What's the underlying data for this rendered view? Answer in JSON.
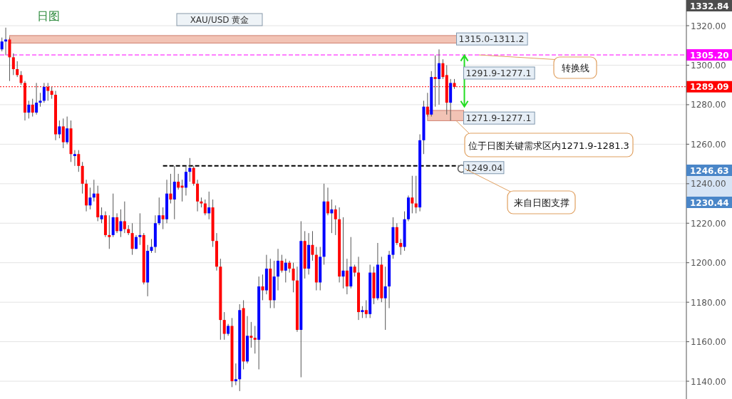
{
  "chart_data": {
    "type": "candlestick",
    "title": "XAU/USD 黄金",
    "subtitle": "日图",
    "categories": [
      null,
      null,
      null,
      null,
      null,
      null,
      null,
      null,
      null,
      null,
      null,
      null,
      null,
      null,
      null,
      null,
      null,
      null,
      null,
      null,
      null,
      null,
      null,
      null,
      null,
      null,
      null,
      null,
      null,
      null,
      null,
      null,
      null,
      null,
      null,
      null,
      null,
      null,
      null,
      null,
      null,
      null,
      null,
      null,
      null,
      null,
      null,
      null,
      null,
      null,
      null,
      null,
      null,
      null,
      null,
      null,
      null,
      null,
      null,
      null,
      null,
      null,
      null,
      null,
      null,
      null,
      null,
      null,
      null,
      null,
      null,
      null,
      null,
      null,
      null,
      null,
      null,
      null,
      null,
      null,
      null,
      null,
      null,
      null,
      null,
      null,
      null,
      null,
      null,
      null,
      null,
      null,
      null,
      null,
      null,
      null,
      null,
      null,
      null,
      null,
      null,
      null,
      null,
      null,
      null,
      null,
      null,
      null,
      null,
      null,
      null,
      null,
      null,
      null,
      null,
      null,
      null,
      null,
      null,
      null,
      null,
      null,
      null,
      null,
      null,
      null,
      null,
      null,
      null,
      null,
      null,
      null,
      null,
      null,
      null,
      null,
      null,
      null,
      null,
      null,
      null,
      null,
      null,
      null,
      null,
      null,
      null,
      null,
      null,
      null,
      null,
      null,
      null,
      null,
      null,
      null,
      null,
      null,
      null,
      null,
      null,
      null,
      null,
      null,
      null,
      null,
      null,
      null,
      null,
      null,
      null,
      null,
      null,
      null,
      null,
      null,
      null,
      null,
      null
    ],
    "ohlc": [
      [
        1308,
        1314,
        1307,
        1312
      ],
      [
        1312,
        1319,
        1305,
        1313
      ],
      [
        1313,
        1314,
        1292,
        1304
      ],
      [
        1304,
        1306,
        1295,
        1298
      ],
      [
        1298,
        1302,
        1294,
        1295
      ],
      [
        1295,
        1297,
        1290,
        1291
      ],
      [
        1291,
        1292,
        1272,
        1276
      ],
      [
        1276,
        1282,
        1273,
        1280
      ],
      [
        1280,
        1283,
        1274,
        1276
      ],
      [
        1276,
        1291,
        1275,
        1281
      ],
      [
        1281,
        1286,
        1279,
        1282
      ],
      [
        1282,
        1291,
        1281,
        1289
      ],
      [
        1289,
        1291,
        1282,
        1287
      ],
      [
        1287,
        1289,
        1283,
        1285
      ],
      [
        1285,
        1287,
        1262,
        1265
      ],
      [
        1265,
        1272,
        1263,
        1269
      ],
      [
        1269,
        1273,
        1258,
        1261
      ],
      [
        1261,
        1274,
        1260,
        1268
      ],
      [
        1268,
        1272,
        1251,
        1255
      ],
      [
        1254,
        1257,
        1249,
        1255
      ],
      [
        1255,
        1257,
        1246,
        1249
      ],
      [
        1249,
        1251,
        1235,
        1240
      ],
      [
        1240,
        1242,
        1226,
        1229
      ],
      [
        1229,
        1238,
        1227,
        1233
      ],
      [
        1233,
        1242,
        1231,
        1235
      ],
      [
        1235,
        1239,
        1221,
        1223
      ],
      [
        1222,
        1228,
        1220,
        1224
      ],
      [
        1224,
        1226,
        1213,
        1214
      ],
      [
        1214,
        1224,
        1207,
        1213
      ],
      [
        1214,
        1235,
        1213,
        1223
      ],
      [
        1223,
        1225,
        1215,
        1216
      ],
      [
        1216,
        1227,
        1213,
        1221
      ],
      [
        1221,
        1231,
        1215,
        1217
      ],
      [
        1217,
        1219,
        1214,
        1215
      ],
      [
        1215,
        1220,
        1204,
        1207
      ],
      [
        1207,
        1214,
        1207,
        1213
      ],
      [
        1213,
        1225,
        1209,
        1214
      ],
      [
        1214,
        1215,
        1189,
        1190
      ],
      [
        1190,
        1209,
        1183,
        1206
      ],
      [
        1206,
        1212,
        1205,
        1208
      ],
      [
        1208,
        1224,
        1205,
        1220
      ],
      [
        1220,
        1233,
        1219,
        1224
      ],
      [
        1224,
        1228,
        1217,
        1222
      ],
      [
        1222,
        1242,
        1220,
        1235
      ],
      [
        1235,
        1245,
        1230,
        1232
      ],
      [
        1232,
        1249,
        1222,
        1241
      ],
      [
        1241,
        1245,
        1237,
        1238
      ],
      [
        1239,
        1242,
        1231,
        1238
      ],
      [
        1238,
        1249,
        1234,
        1246
      ],
      [
        1246,
        1253,
        1241,
        1248
      ],
      [
        1248,
        1249,
        1239,
        1240
      ],
      [
        1240,
        1242,
        1226,
        1231
      ],
      [
        1231,
        1233,
        1228,
        1230
      ],
      [
        1230,
        1232,
        1224,
        1225
      ],
      [
        1225,
        1236,
        1222,
        1228
      ],
      [
        1228,
        1232,
        1208,
        1211
      ],
      [
        1211,
        1215,
        1196,
        1198
      ],
      [
        1198,
        1202,
        1161,
        1171
      ],
      [
        1171,
        1175,
        1161,
        1164
      ],
      [
        1164,
        1169,
        1163,
        1168
      ],
      [
        1168,
        1172,
        1137,
        1140
      ],
      [
        1140,
        1149,
        1138,
        1141
      ],
      [
        1141,
        1179,
        1135,
        1176
      ],
      [
        1177,
        1181,
        1146,
        1150
      ],
      [
        1150,
        1173,
        1149,
        1163
      ],
      [
        1163,
        1170,
        1157,
        1162
      ],
      [
        1162,
        1168,
        1154,
        1161
      ],
      [
        1161,
        1193,
        1146,
        1188
      ],
      [
        1188,
        1194,
        1181,
        1186
      ],
      [
        1186,
        1204,
        1184,
        1197
      ],
      [
        1197,
        1202,
        1177,
        1181
      ],
      [
        1181,
        1201,
        1177,
        1193
      ],
      [
        1193,
        1207,
        1186,
        1201
      ],
      [
        1201,
        1204,
        1195,
        1196
      ],
      [
        1196,
        1202,
        1190,
        1200
      ],
      [
        1200,
        1201,
        1195,
        1197
      ],
      [
        1197,
        1200,
        1185,
        1191
      ],
      [
        1191,
        1198,
        1165,
        1166
      ],
      [
        1166,
        1221,
        1142,
        1211
      ],
      [
        1211,
        1216,
        1192,
        1197
      ],
      [
        1197,
        1215,
        1194,
        1209
      ],
      [
        1209,
        1216,
        1201,
        1204
      ],
      [
        1204,
        1208,
        1186,
        1190
      ],
      [
        1190,
        1208,
        1186,
        1203
      ],
      [
        1203,
        1240,
        1199,
        1231
      ],
      [
        1231,
        1238,
        1224,
        1225
      ],
      [
        1225,
        1232,
        1215,
        1227
      ],
      [
        1227,
        1229,
        1214,
        1222
      ],
      [
        1222,
        1228,
        1190,
        1193
      ],
      [
        1193,
        1223,
        1187,
        1196
      ],
      [
        1196,
        1202,
        1184,
        1188
      ],
      [
        1188,
        1213,
        1187,
        1198
      ],
      [
        1198,
        1199,
        1193,
        1195
      ],
      [
        1195,
        1203,
        1171,
        1175
      ],
      [
        1175,
        1178,
        1172,
        1176
      ],
      [
        1176,
        1181,
        1172,
        1174
      ],
      [
        1174,
        1199,
        1172,
        1195
      ],
      [
        1195,
        1198,
        1179,
        1182
      ],
      [
        1182,
        1210,
        1181,
        1199
      ],
      [
        1199,
        1203,
        1180,
        1182
      ],
      [
        1182,
        1198,
        1166,
        1188
      ],
      [
        1188,
        1206,
        1177,
        1204
      ],
      [
        1204,
        1223,
        1202,
        1218
      ],
      [
        1218,
        1220,
        1209,
        1210
      ],
      [
        1210,
        1212,
        1204,
        1208
      ],
      [
        1208,
        1226,
        1206,
        1222
      ],
      [
        1222,
        1234,
        1221,
        1233
      ],
      [
        1233,
        1244,
        1225,
        1230
      ],
      [
        1230,
        1244,
        1225,
        1228
      ],
      [
        1228,
        1265,
        1226,
        1262
      ],
      [
        1262,
        1282,
        1255,
        1279
      ],
      [
        1279,
        1286,
        1274,
        1275
      ],
      [
        1275,
        1297,
        1274,
        1294
      ],
      [
        1294,
        1305,
        1279,
        1293
      ],
      [
        1293,
        1308,
        1280,
        1301
      ],
      [
        1301,
        1303,
        1293,
        1294
      ],
      [
        1295,
        1300,
        1275,
        1281
      ],
      [
        1281,
        1293,
        1272,
        1291
      ],
      [
        1291,
        1293,
        1288,
        1289
      ],
      null,
      null,
      null,
      null,
      null,
      null,
      null,
      null,
      null,
      null,
      null,
      null,
      null,
      null,
      null,
      null,
      null,
      null,
      null,
      null,
      null,
      null,
      null,
      null,
      null,
      null,
      null,
      null,
      null,
      null,
      null,
      null,
      null,
      null,
      null,
      null,
      null,
      null,
      null,
      null,
      null,
      null,
      null,
      null,
      null,
      null,
      null,
      null,
      null,
      null,
      null,
      null,
      null,
      null,
      null,
      null,
      null,
      null,
      null,
      null
    ],
    "colors": [
      "#0000ff",
      "#0000ff",
      "#ff0000",
      "#ff0000",
      "#ff0000",
      "#ff0000",
      "#ff0000",
      "#0000ff",
      "#ff0000",
      "#0000ff",
      "#0000ff",
      "#0000ff",
      "#ff0000",
      "#ff0000",
      "#ff0000",
      "#0000ff",
      "#ff0000",
      "#0000ff",
      "#ff0000",
      "#0000ff",
      "#ff0000",
      "#ff0000",
      "#ff0000",
      "#0000ff",
      "#0000ff",
      "#ff0000",
      "#0000ff",
      "#ff0000",
      "#ff0000",
      "#0000ff",
      "#ff0000",
      "#0000ff",
      "#ff0000",
      "#ff0000",
      "#ff0000",
      "#0000ff",
      "#0000ff",
      "#ff0000",
      "#0000ff",
      "#0000ff",
      "#0000ff",
      "#0000ff",
      "#ff0000",
      "#0000ff",
      "#ff0000",
      "#0000ff",
      "#ff0000",
      "#ff0000",
      "#0000ff",
      "#0000ff",
      "#ff0000",
      "#ff0000",
      "#ff0000",
      "#ff0000",
      "#0000ff",
      "#ff0000",
      "#ff0000",
      "#ff0000",
      "#ff0000",
      "#0000ff",
      "#ff0000",
      "#0000ff",
      "#0000ff",
      "#ff0000",
      "#0000ff",
      "#ff0000",
      "#ff0000",
      "#0000ff",
      "#ff0000",
      "#0000ff",
      "#ff0000",
      "#0000ff",
      "#0000ff",
      "#ff0000",
      "#0000ff",
      "#ff0000",
      "#ff0000",
      "#ff0000",
      "#0000ff",
      "#ff0000",
      "#0000ff",
      "#ff0000",
      "#ff0000",
      "#0000ff",
      "#0000ff",
      "#ff0000",
      "#0000ff",
      "#ff0000",
      "#ff0000",
      "#0000ff",
      "#ff0000",
      "#0000ff",
      "#ff0000",
      "#ff0000",
      "#0000ff",
      "#ff0000",
      "#0000ff",
      "#ff0000",
      "#0000ff",
      "#ff0000",
      "#0000ff",
      "#0000ff",
      "#0000ff",
      "#ff0000",
      "#ff0000",
      "#0000ff",
      "#0000ff",
      "#ff0000",
      "#ff0000",
      "#0000ff",
      "#0000ff",
      "#ff0000",
      "#0000ff",
      "#ff0000",
      "#0000ff",
      "#ff0000",
      "#ff0000",
      "#0000ff",
      "#ff0000",
      null,
      null,
      null,
      null,
      null,
      null,
      null,
      null,
      null,
      null,
      null,
      null,
      null,
      null,
      null,
      null,
      null,
      null,
      null,
      null,
      null,
      null,
      null,
      null,
      null,
      null,
      null,
      null,
      null,
      null,
      null,
      null,
      null,
      null,
      null,
      null,
      null,
      null,
      null,
      null,
      null,
      null,
      null,
      null,
      null,
      null,
      null,
      null,
      null,
      null,
      null,
      null,
      null,
      null,
      null,
      null,
      null,
      null,
      null,
      null
    ],
    "ylim": [
      1131,
      1333
    ],
    "yticks": [
      {
        "value": 1140,
        "label": "1140.00"
      },
      {
        "value": 1160,
        "label": "1160.00"
      },
      {
        "value": 1180,
        "label": "1180.00"
      },
      {
        "value": 1200,
        "label": "1200.00"
      },
      {
        "value": 1220,
        "label": "1220.00"
      },
      {
        "value": 1240,
        "label": "1240.00"
      },
      {
        "value": 1260,
        "label": "1260.00"
      },
      {
        "value": 1280,
        "label": "1280.00"
      },
      {
        "value": 1300,
        "label": "1300.00"
      },
      {
        "value": 1320,
        "label": "1320.00"
      }
    ],
    "grid": "y",
    "tick_labels": "y",
    "bands": [
      {
        "axis": "y",
        "from": 1311.2,
        "to": 1315.0,
        "label": "1315.0-1311.2",
        "color": "#f0b8a8"
      },
      {
        "axis": "y",
        "from": 1271.9,
        "to": 1277.1,
        "label": "1271.9-1277.1",
        "color": "#f0b8a8"
      }
    ],
    "ref_lines": [
      {
        "axis": "y",
        "value": 1305.2,
        "label": "1305.20",
        "color": "#ff00ff",
        "line_style": "dashed"
      },
      {
        "axis": "y",
        "value": 1289.09,
        "label": "1289.09",
        "color": "#ff0000",
        "line_style": "dotted"
      },
      {
        "axis": "y",
        "value": 1249.04,
        "label": "1249.04",
        "color": "#000000",
        "line_style": "dashed"
      }
    ],
    "annotations": [
      "1291.9-1277.1",
      "转换线",
      "位于日图关键需求区内1271.9-1281.3",
      "来自日图支撑",
      "1332.84",
      "1246.63",
      "1230.44"
    ]
  }
}
